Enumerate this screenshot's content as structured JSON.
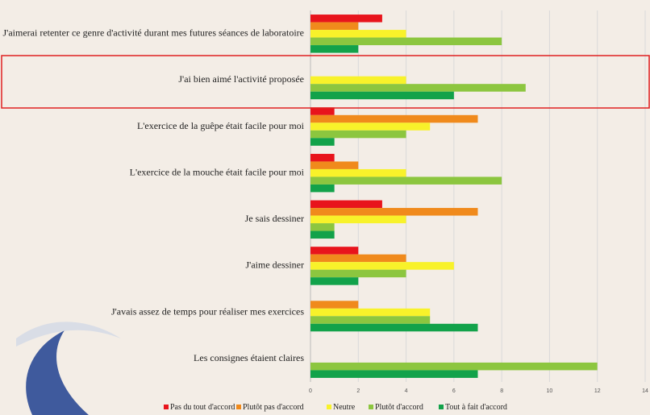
{
  "chart_data": {
    "type": "hbar",
    "categories": [
      "J'aimerai retenter ce genre d'activité durant mes futures séances de laboratoire",
      "J'ai bien aimé l'activité proposée",
      "L'exercice de la guêpe était facile pour moi",
      "L'exercice de la mouche était facile pour moi",
      "Je sais dessiner",
      "J'aime dessiner",
      "J'avais assez de temps pour réaliser mes exercices",
      "Les consignes étaient claires"
    ],
    "series": [
      {
        "name": "Pas du tout d'accord",
        "color": "#e8141c",
        "values": [
          3,
          0,
          1,
          1,
          3,
          2,
          0,
          0
        ]
      },
      {
        "name": "Plutôt pas d'accord",
        "color": "#f08a1c",
        "values": [
          2,
          0,
          7,
          2,
          7,
          4,
          2,
          0
        ]
      },
      {
        "name": "Neutre",
        "color": "#f8f22a",
        "values": [
          4,
          4,
          5,
          4,
          4,
          6,
          5,
          0
        ]
      },
      {
        "name": "Plutôt d'accord",
        "color": "#8cc63f",
        "values": [
          8,
          9,
          4,
          8,
          1,
          4,
          5,
          12
        ]
      },
      {
        "name": "Tout à fait d'accord",
        "color": "#12a24a",
        "values": [
          2,
          6,
          1,
          1,
          1,
          2,
          7,
          7
        ]
      }
    ],
    "xlim": [
      0,
      14
    ],
    "xticks": [
      0,
      2,
      4,
      6,
      8,
      10,
      12,
      14
    ],
    "grid": true,
    "legend": "bottom"
  }
}
